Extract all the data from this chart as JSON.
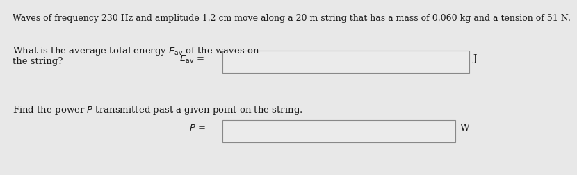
{
  "title_text": "Waves of frequency 230 Hz and amplitude 1.2 cm move along a 20 m string that has a mass of 0.060 kg and a tension of 51 N.",
  "q1_line1": "What is the average total energy $E_{\\mathrm{av}}$ of the waves on",
  "q1_line2": "the string?",
  "q1_label": "$E_{\\mathrm{av}}$ =",
  "q1_unit": "J",
  "q2_text": "Find the power $P$ transmitted past a given point on the string.",
  "q2_label": "$P$ =",
  "q2_unit": "W",
  "bg_color": "#e8e8e8",
  "box_color": "#ebebeb",
  "box_edge_color": "#888888",
  "text_color": "#1a1a1a",
  "title_fontsize": 9.0,
  "body_fontsize": 9.5
}
